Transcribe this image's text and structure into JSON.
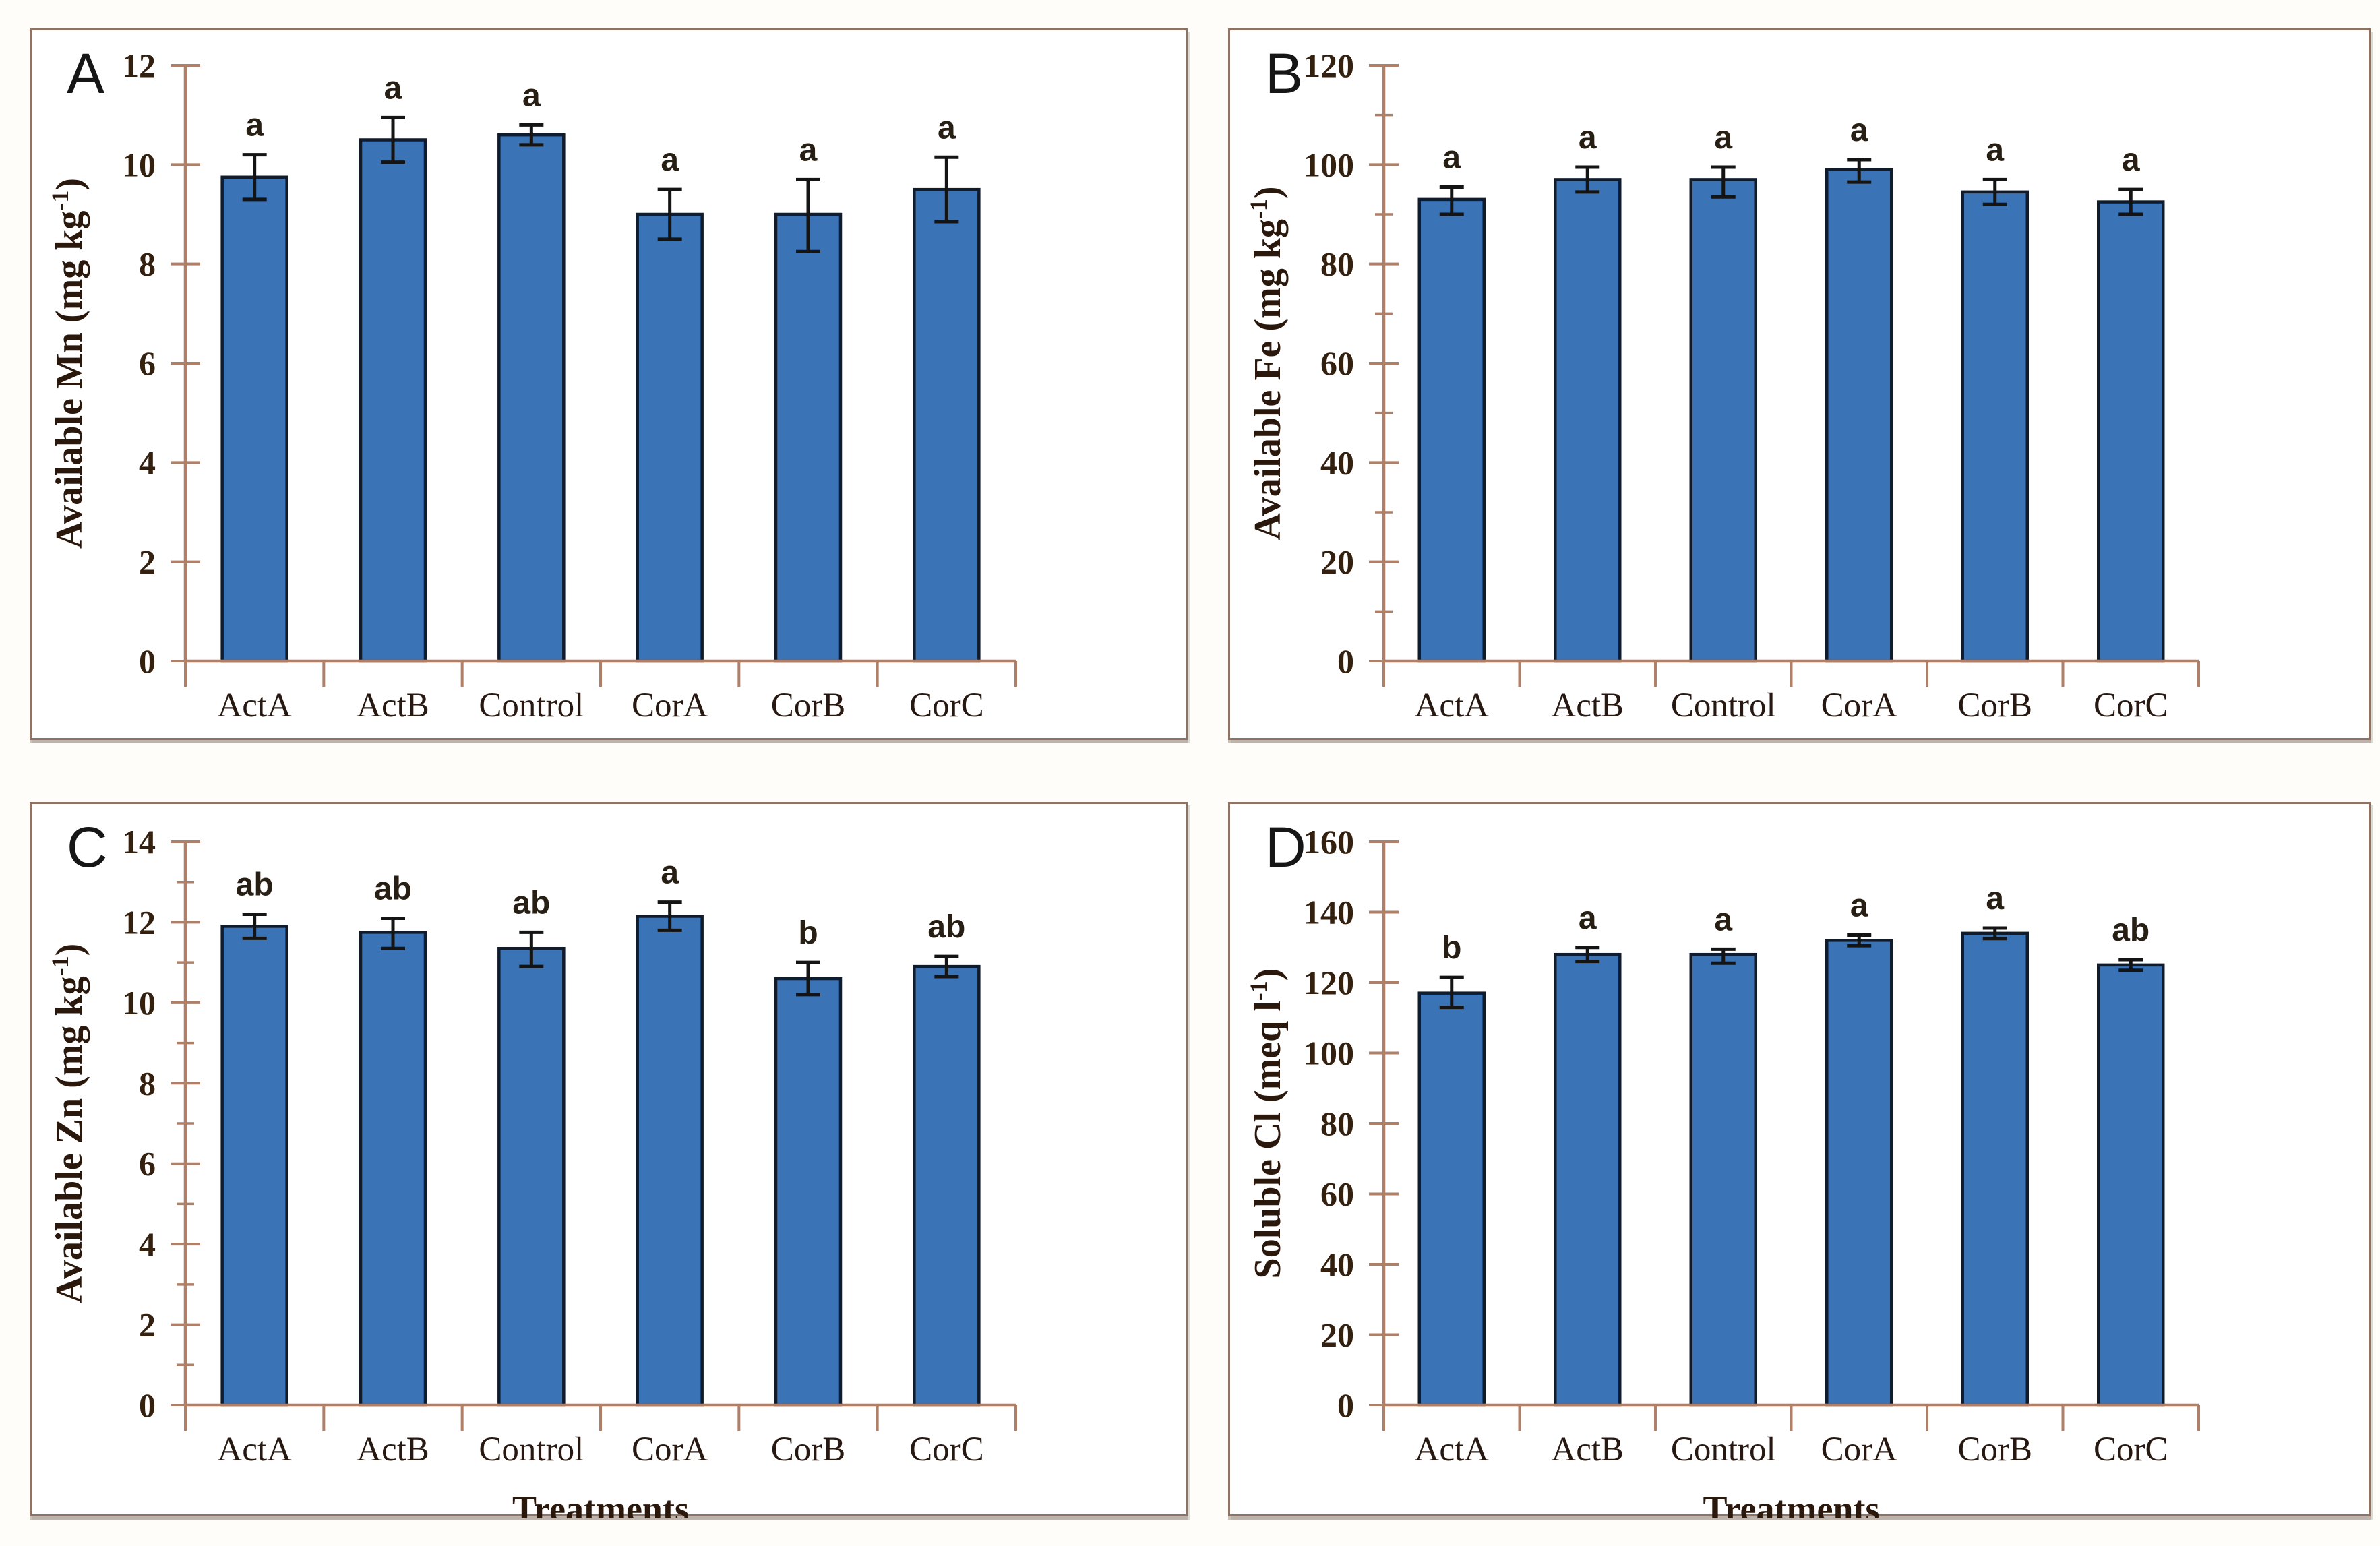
{
  "figure": {
    "description": "Four-panel bar chart figure of soil nutrient measurements under six treatments",
    "background_color": "#fffdf9"
  },
  "colors": {
    "bar_fill": "#3a73b6",
    "bar_border": "#101b2c",
    "error_bar": "#141414",
    "axis_line": "#af7f67",
    "tick_label": "#33200f",
    "category_label": "#271911",
    "significance_letter": "#271e14",
    "panel_frame": "#8e7365",
    "panel_letter": "#161616",
    "axis_title": "#2b180c"
  },
  "categories": [
    "ActA",
    "ActB",
    "Control",
    "CorA",
    "CorB",
    "CorC"
  ],
  "chart_data": [
    {
      "type": "bar",
      "panel_label": "A",
      "ylabel_prefix": "Available Mn (mg kg",
      "ylabel_sup": "-1",
      "ylabel_suffix": ")",
      "xlabel": "",
      "ylim": [
        0,
        12
      ],
      "ytick_step": 2,
      "minor_tick_step": null,
      "categories": [
        "ActA",
        "ActB",
        "Control",
        "CorA",
        "CorB",
        "CorC"
      ],
      "values": [
        9.75,
        10.5,
        10.6,
        9.0,
        9.0,
        9.5
      ],
      "error_low": [
        9.3,
        10.05,
        10.4,
        8.5,
        8.25,
        8.85
      ],
      "error_high": [
        10.2,
        10.95,
        10.8,
        9.5,
        9.7,
        10.15
      ],
      "sig_letters": [
        "a",
        "a",
        "a",
        "a",
        "a",
        "a"
      ],
      "grid": "off",
      "legend": "none"
    },
    {
      "type": "bar",
      "panel_label": "B",
      "ylabel_prefix": "Available Fe (mg kg",
      "ylabel_sup": "-1",
      "ylabel_suffix": ")",
      "xlabel": "",
      "ylim": [
        0,
        120
      ],
      "ytick_step": 20,
      "minor_tick_step": 10,
      "categories": [
        "ActA",
        "ActB",
        "Control",
        "CorA",
        "CorB",
        "CorC"
      ],
      "values": [
        93,
        97,
        97,
        99,
        94.5,
        92.5
      ],
      "error_low": [
        90,
        94.5,
        93.5,
        96.5,
        92,
        90
      ],
      "error_high": [
        95.5,
        99.5,
        99.5,
        101,
        97,
        95
      ],
      "sig_letters": [
        "a",
        "a",
        "a",
        "a",
        "a",
        "a"
      ],
      "grid": "off",
      "legend": "none"
    },
    {
      "type": "bar",
      "panel_label": "C",
      "ylabel_prefix": "Available Zn (mg kg",
      "ylabel_sup": "-1",
      "ylabel_suffix": ")",
      "xlabel": "Treatments",
      "ylim": [
        0,
        14
      ],
      "ytick_step": 2,
      "minor_tick_step": 1,
      "categories": [
        "ActA",
        "ActB",
        "Control",
        "CorA",
        "CorB",
        "CorC"
      ],
      "values": [
        11.9,
        11.75,
        11.35,
        12.15,
        10.6,
        10.9
      ],
      "error_low": [
        11.6,
        11.35,
        10.9,
        11.8,
        10.2,
        10.65
      ],
      "error_high": [
        12.2,
        12.1,
        11.75,
        12.5,
        11.0,
        11.15
      ],
      "sig_letters": [
        "ab",
        "ab",
        "ab",
        "a",
        "b",
        "ab"
      ],
      "grid": "off",
      "legend": "none"
    },
    {
      "type": "bar",
      "panel_label": "D",
      "ylabel_prefix": "Soluble Cl (meq l",
      "ylabel_sup": "-1",
      "ylabel_suffix": ")",
      "xlabel": "Treatments",
      "ylim": [
        0,
        160
      ],
      "ytick_step": 20,
      "minor_tick_step": null,
      "categories": [
        "ActA",
        "ActB",
        "Control",
        "CorA",
        "CorB",
        "CorC"
      ],
      "values": [
        117,
        128,
        128,
        132,
        134,
        125
      ],
      "error_low": [
        113,
        126,
        125.5,
        130.5,
        132.5,
        123.5
      ],
      "error_high": [
        121.5,
        130,
        129.5,
        133.5,
        135.5,
        126.5
      ],
      "sig_letters": [
        "b",
        "a",
        "a",
        "a",
        "a",
        "ab"
      ],
      "grid": "off",
      "legend": "none"
    }
  ]
}
